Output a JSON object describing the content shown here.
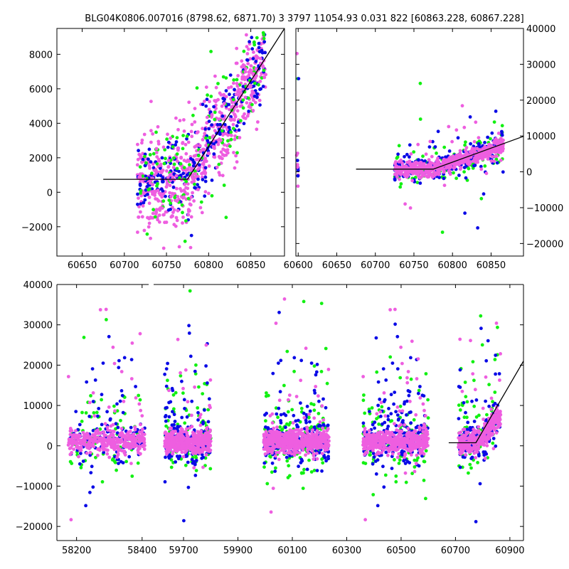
{
  "title": "BLG04K0806.007016 (8798.62, 6871.70)  3 3797 11054.93 0.031 822 [60863.228, 60867.228]",
  "colors": {
    "blue": "#0a0ae6",
    "green": "#12f012",
    "pink": "#ee5ee0",
    "model": "#000000"
  },
  "chart_data": [
    {
      "type": "scatter",
      "panel": "zoom-left",
      "xlim": [
        60620,
        60890
      ],
      "ylim": [
        -3700,
        9500
      ],
      "x_ticks": [
        60650,
        60700,
        60750,
        60800,
        60850
      ],
      "y_ticks": [
        -2000,
        0,
        2000,
        4000,
        6000,
        8000
      ],
      "y_axis_side": "left",
      "grid": false,
      "model_line": [
        [
          60675,
          750
        ],
        [
          60775,
          750
        ],
        [
          60890,
          9500
        ]
      ],
      "series": [
        {
          "color": "pink",
          "x_range": [
            60715,
            60868
          ],
          "y_center": "rising 0 to 8000",
          "points_approx": 520
        },
        {
          "color": "blue",
          "x_range": [
            60735,
            60865
          ],
          "y_center": "rising 1500 to 8000",
          "points_approx": 230
        },
        {
          "color": "green",
          "x_range": [
            60730,
            60868
          ],
          "y_center": "rising 1500 to 8500",
          "points_approx": 130
        }
      ]
    },
    {
      "type": "scatter",
      "panel": "zoom-right",
      "xlim": [
        60597,
        60892
      ],
      "ylim": [
        -23500,
        40000
      ],
      "x_ticks": [
        60600,
        60650,
        60700,
        60750,
        60800,
        60850
      ],
      "y_ticks": [
        -20000,
        -10000,
        0,
        10000,
        20000,
        30000,
        40000
      ],
      "y_axis_side": "right",
      "grid": false,
      "model_line": [
        [
          60675,
          750
        ],
        [
          60775,
          750
        ],
        [
          60892,
          9900
        ]
      ],
      "series": [
        {
          "color": "pink",
          "x_range": [
            60598,
            60866
          ],
          "y_center": "rising 0 to 8000",
          "points_approx": 560
        },
        {
          "color": "blue",
          "x_range": [
            60598,
            60866
          ],
          "y_center": "rising 1000 to 8000",
          "points_approx": 260
        },
        {
          "color": "green",
          "x_range": [
            60598,
            60866
          ],
          "y_center": "rising 1500 to 10000",
          "points_approx": 140
        }
      ]
    },
    {
      "type": "scatter",
      "panel": "full-broken-axis",
      "ylim": [
        -23500,
        40000
      ],
      "y_ticks": [
        -20000,
        -10000,
        0,
        10000,
        20000,
        30000,
        40000
      ],
      "y_axis_side": "left",
      "grid": false,
      "segments": [
        {
          "xlim": [
            58140,
            58420
          ],
          "x_ticks": [
            58200,
            58400
          ],
          "season": [
            58175,
            58410
          ]
        },
        {
          "xlim": [
            59590,
            60950
          ],
          "x_ticks": [
            59700,
            59900,
            60100,
            60300,
            60500,
            60700,
            60900
          ],
          "seasons": [
            [
              59630,
              59800
            ],
            [
              59995,
              60235
            ],
            [
              60360,
              60600
            ],
            [
              60710,
              60866
            ]
          ]
        }
      ],
      "x_tick_labels": [
        "58200",
        "58400",
        "59700",
        "59900",
        "60100",
        "60300",
        "60500",
        "60700",
        "60900"
      ],
      "model_line": [
        [
          60675,
          750
        ],
        [
          60775,
          750
        ],
        [
          60950,
          21000
        ]
      ]
    }
  ]
}
